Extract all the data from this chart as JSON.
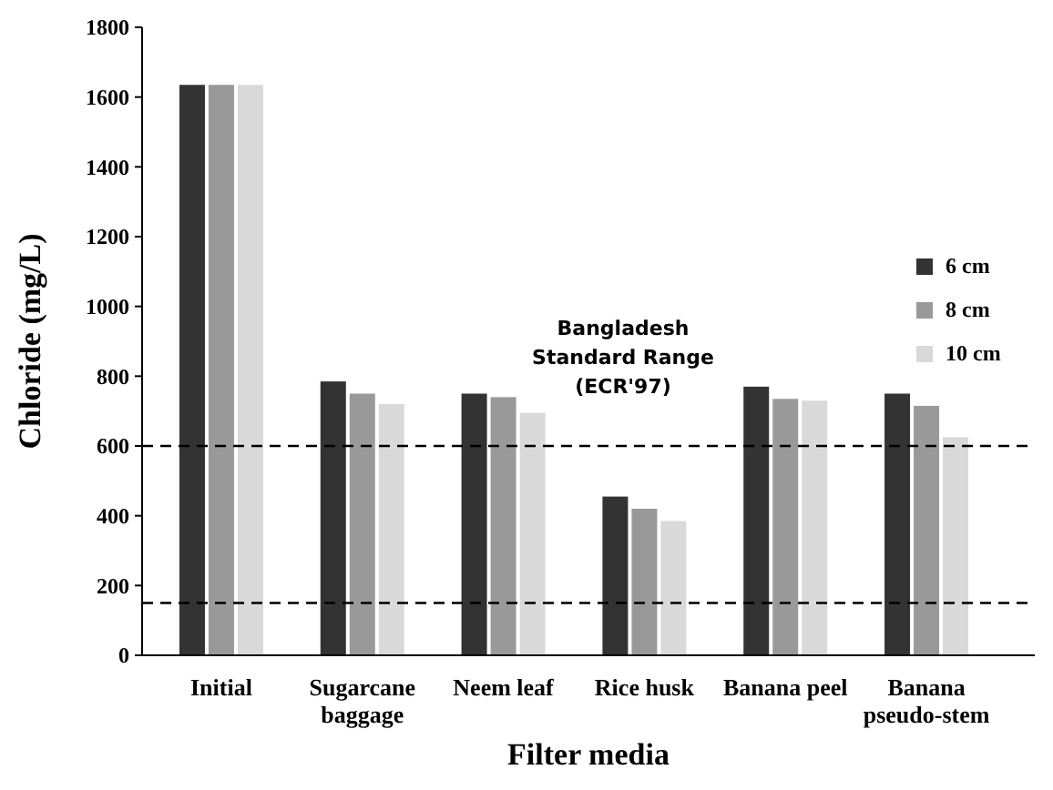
{
  "chart_data": {
    "type": "bar",
    "xlabel": "Filter media",
    "ylabel": "Chloride (mg/L)",
    "categories": [
      "Initial",
      "Sugarcane\nbaggage",
      "Neem leaf",
      "Rice husk",
      "Banana peel",
      "Banana\npseudo-stem"
    ],
    "series": [
      {
        "name": "6 cm",
        "color": "#333333",
        "values": [
          1635,
          785,
          750,
          455,
          770,
          750
        ]
      },
      {
        "name": "8 cm",
        "color": "#999999",
        "values": [
          1635,
          750,
          740,
          420,
          735,
          715
        ]
      },
      {
        "name": "10 cm",
        "color": "#d9d9d9",
        "values": [
          1635,
          720,
          695,
          385,
          730,
          625
        ]
      }
    ],
    "ylim": [
      0,
      1800
    ],
    "yticks": [
      0,
      200,
      400,
      600,
      800,
      1000,
      1200,
      1400,
      1600,
      1800
    ],
    "ref_lines": [
      {
        "axis": "y",
        "value": 600,
        "line_style": "dashed",
        "color": "#000000"
      },
      {
        "axis": "y",
        "value": 150,
        "line_style": "dashed",
        "color": "#000000"
      }
    ],
    "annotations": [
      "Bangladesh\nStandard Range\n(ECR'97)"
    ],
    "legend": "right",
    "grid": false
  }
}
